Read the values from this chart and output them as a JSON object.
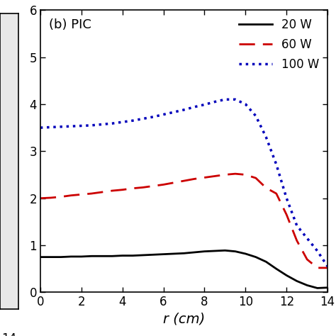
{
  "title": "(b) PIC",
  "xlabel": "r (cm)",
  "xlim": [
    0,
    14
  ],
  "ylim": [
    0,
    6
  ],
  "xticks": [
    0,
    2,
    4,
    6,
    8,
    10,
    12,
    14
  ],
  "yticks": [
    0,
    1,
    2,
    3,
    4,
    5,
    6
  ],
  "legend": [
    {
      "label": "20 W",
      "color": "#000000",
      "linestyle": "solid",
      "linewidth": 2.0
    },
    {
      "label": "60 W",
      "color": "#cc0000",
      "linestyle": "dashed",
      "linewidth": 2.0
    },
    {
      "label": "100 W",
      "color": "#0000bb",
      "linestyle": "dotted",
      "linewidth": 2.5
    }
  ],
  "line_20W_x": [
    0.0,
    0.5,
    1.0,
    1.5,
    2.0,
    2.5,
    3.0,
    3.5,
    4.0,
    4.5,
    5.0,
    5.5,
    6.0,
    6.5,
    7.0,
    7.5,
    8.0,
    8.5,
    9.0,
    9.5,
    10.0,
    10.5,
    11.0,
    11.5,
    12.0,
    12.5,
    13.0,
    13.5,
    14.0
  ],
  "line_20W_y": [
    0.75,
    0.75,
    0.75,
    0.76,
    0.76,
    0.77,
    0.77,
    0.77,
    0.78,
    0.78,
    0.79,
    0.8,
    0.81,
    0.82,
    0.83,
    0.85,
    0.87,
    0.88,
    0.89,
    0.87,
    0.82,
    0.75,
    0.65,
    0.5,
    0.36,
    0.24,
    0.15,
    0.09,
    0.1
  ],
  "line_60W_x": [
    0.0,
    0.5,
    1.0,
    1.5,
    2.0,
    2.5,
    3.0,
    3.5,
    4.0,
    4.5,
    5.0,
    5.5,
    6.0,
    6.5,
    7.0,
    7.5,
    8.0,
    8.5,
    9.0,
    9.5,
    10.0,
    10.5,
    11.0,
    11.5,
    12.0,
    12.5,
    13.0,
    13.5,
    14.0
  ],
  "line_60W_y": [
    2.0,
    2.01,
    2.03,
    2.06,
    2.08,
    2.1,
    2.13,
    2.16,
    2.18,
    2.21,
    2.23,
    2.26,
    2.29,
    2.33,
    2.37,
    2.41,
    2.44,
    2.47,
    2.5,
    2.52,
    2.5,
    2.43,
    2.22,
    2.1,
    1.65,
    1.1,
    0.7,
    0.52,
    0.52
  ],
  "line_100W_x": [
    0.0,
    0.5,
    1.0,
    1.5,
    2.0,
    2.5,
    3.0,
    3.5,
    4.0,
    4.5,
    5.0,
    5.5,
    6.0,
    6.5,
    7.0,
    7.5,
    8.0,
    8.5,
    9.0,
    9.5,
    10.0,
    10.5,
    11.0,
    11.5,
    12.0,
    12.5,
    13.0,
    13.5,
    14.0
  ],
  "line_100W_y": [
    3.5,
    3.51,
    3.52,
    3.53,
    3.54,
    3.55,
    3.57,
    3.59,
    3.62,
    3.65,
    3.69,
    3.73,
    3.78,
    3.83,
    3.88,
    3.94,
    3.99,
    4.05,
    4.1,
    4.1,
    4.0,
    3.75,
    3.3,
    2.72,
    2.0,
    1.42,
    1.15,
    0.88,
    0.55
  ]
}
